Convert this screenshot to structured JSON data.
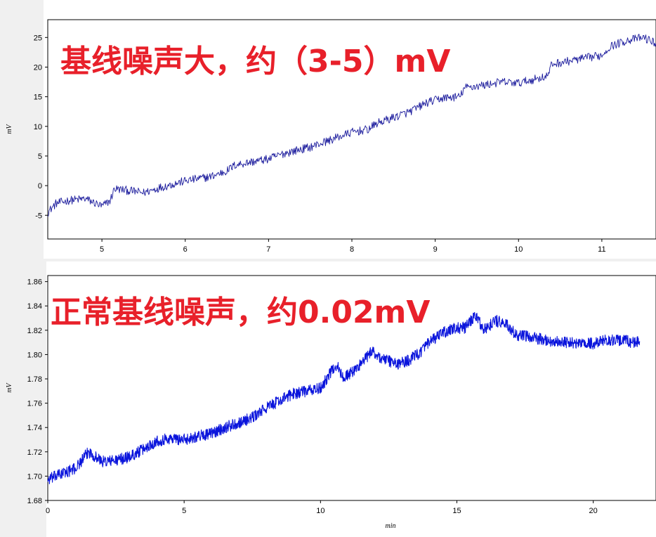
{
  "chart_data": [
    {
      "type": "line",
      "annotation": "基线噪声大，约（3-5）mV",
      "ylabel": "mV",
      "xlabel": "",
      "xlim": [
        4.35,
        11.65
      ],
      "ylim": [
        -9,
        28
      ],
      "xticks": [
        5,
        6,
        7,
        8,
        9,
        10,
        11
      ],
      "yticks": [
        -5,
        0,
        5,
        10,
        15,
        20,
        25
      ],
      "noise": 0.9,
      "line_color": "#1a1a9c",
      "series": [
        {
          "x": [
            4.35,
            4.45,
            4.6,
            4.8,
            5.0,
            5.1,
            5.15,
            5.3,
            5.5,
            5.7,
            6.0,
            6.3,
            6.5,
            6.6,
            6.8,
            7.0,
            7.2,
            7.5,
            7.8,
            8.0,
            8.2,
            8.3,
            8.5,
            8.7,
            8.9,
            9.1,
            9.3,
            9.35,
            9.6,
            9.8,
            10.0,
            10.2,
            10.35,
            10.4,
            10.6,
            10.8,
            11.0,
            11.1,
            11.3,
            11.5,
            11.65
          ],
          "y": [
            -4.5,
            -3.0,
            -2.5,
            -2.2,
            -3.5,
            -2.5,
            -0.5,
            -0.8,
            -1.2,
            -0.3,
            0.8,
            1.5,
            2.5,
            3.5,
            4.0,
            4.5,
            5.5,
            6.5,
            8.0,
            9.0,
            9.5,
            10.5,
            11.5,
            12.5,
            14.0,
            14.8,
            15.0,
            16.5,
            17.0,
            17.5,
            17.3,
            18.0,
            18.5,
            20.5,
            21.0,
            21.5,
            22.0,
            23.5,
            24.5,
            25.0,
            24.0
          ]
        }
      ]
    },
    {
      "type": "line",
      "annotation": "正常基线噪声，约0.02mV",
      "ylabel": "mV",
      "xlabel": "min",
      "xlim": [
        0,
        22.3
      ],
      "ylim": [
        1.68,
        1.865
      ],
      "xticks": [
        0,
        5,
        10,
        15,
        20
      ],
      "yticks": [
        1.68,
        1.7,
        1.72,
        1.74,
        1.76,
        1.78,
        1.8,
        1.82,
        1.84,
        1.86
      ],
      "noise": 0.004,
      "line_color": "#0a14dc",
      "series": [
        {
          "x": [
            0,
            0.5,
            1.0,
            1.5,
            2.0,
            2.5,
            3.0,
            3.5,
            4.0,
            4.5,
            5.0,
            5.5,
            6.0,
            6.5,
            7.0,
            7.5,
            8.0,
            8.5,
            9.0,
            9.5,
            10.0,
            10.3,
            10.6,
            10.8,
            11.2,
            11.5,
            11.9,
            12.2,
            12.5,
            12.8,
            13.2,
            13.6,
            14.0,
            14.5,
            15.0,
            15.3,
            15.7,
            16.0,
            16.4,
            16.8,
            17.2,
            17.6,
            18.0,
            18.5,
            19.0,
            19.5,
            20.0,
            20.5,
            21.0,
            21.5,
            21.7
          ],
          "y": [
            1.697,
            1.702,
            1.706,
            1.72,
            1.712,
            1.713,
            1.716,
            1.722,
            1.729,
            1.731,
            1.73,
            1.733,
            1.735,
            1.74,
            1.744,
            1.748,
            1.756,
            1.762,
            1.768,
            1.77,
            1.772,
            1.783,
            1.792,
            1.781,
            1.786,
            1.793,
            1.803,
            1.797,
            1.795,
            1.792,
            1.795,
            1.801,
            1.81,
            1.818,
            1.822,
            1.822,
            1.832,
            1.82,
            1.828,
            1.825,
            1.815,
            1.815,
            1.813,
            1.811,
            1.81,
            1.809,
            1.809,
            1.812,
            1.812,
            1.81,
            1.811
          ]
        }
      ]
    }
  ]
}
